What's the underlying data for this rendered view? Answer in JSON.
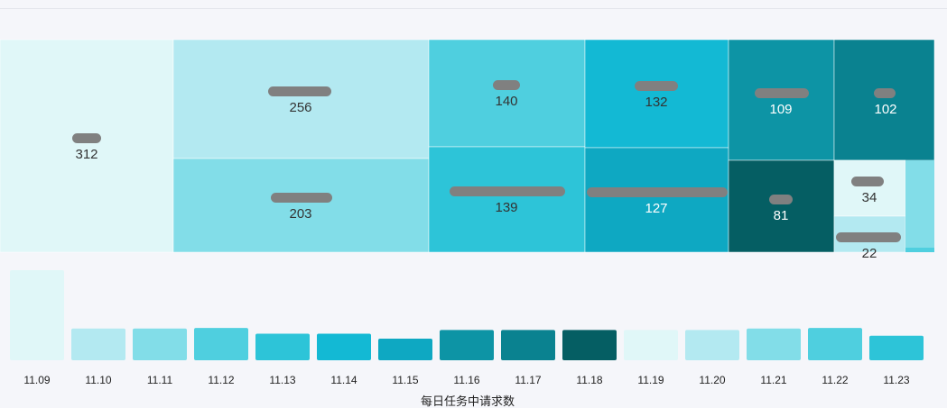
{
  "chart_data": [
    {
      "type": "treemap",
      "cells": [
        {
          "value": 312,
          "label": "312",
          "color": "#e0f7f8",
          "text_color": "#333333"
        },
        {
          "value": 256,
          "label": "256",
          "color": "#b3e9f1",
          "text_color": "#333333"
        },
        {
          "value": 203,
          "label": "203",
          "color": "#82dde8",
          "text_color": "#333333"
        },
        {
          "value": 140,
          "label": "140",
          "color": "#4fcfdf",
          "text_color": "#333333"
        },
        {
          "value": 139,
          "label": "139",
          "color": "#2dc4d8",
          "text_color": "#333333"
        },
        {
          "value": 132,
          "label": "132",
          "color": "#13b9d4",
          "text_color": "#333333"
        },
        {
          "value": 127,
          "label": "127",
          "color": "#0ea8c2",
          "text_color": "#ffffff"
        },
        {
          "value": 109,
          "label": "109",
          "color": "#0d94a5",
          "text_color": "#ffffff"
        },
        {
          "value": 102,
          "label": "102",
          "color": "#0a8290",
          "text_color": "#ffffff"
        },
        {
          "value": 81,
          "label": "81",
          "color": "#055e63",
          "text_color": "#ffffff"
        },
        {
          "value": 34,
          "label": "34",
          "color": "#e0f7f8",
          "text_color": "#333333"
        },
        {
          "value": 22,
          "label": "22",
          "color": "#b3e9f1",
          "text_color": "#333333"
        }
      ]
    },
    {
      "type": "bar",
      "categories": [
        "11.09",
        "11.10",
        "11.11",
        "11.12",
        "11.13",
        "11.14",
        "11.15",
        "11.16",
        "11.17",
        "11.18",
        "11.19",
        "11.20",
        "11.21",
        "11.22",
        "11.23"
      ],
      "values": [
        312,
        110,
        110,
        112,
        92,
        92,
        75,
        105,
        105,
        105,
        105,
        105,
        110,
        112,
        85
      ],
      "colors": [
        "#e0f7f8",
        "#b3e9f1",
        "#82dde8",
        "#4fcfdf",
        "#2dc4d8",
        "#13b9d4",
        "#0ea8c2",
        "#0d94a5",
        "#0a8290",
        "#055e63",
        "#e0f7f8",
        "#b3e9f1",
        "#82dde8",
        "#4fcfdf",
        "#2dc4d8"
      ],
      "xlabel": "每日任务中请求数",
      "ylim": [
        0,
        312
      ]
    }
  ]
}
